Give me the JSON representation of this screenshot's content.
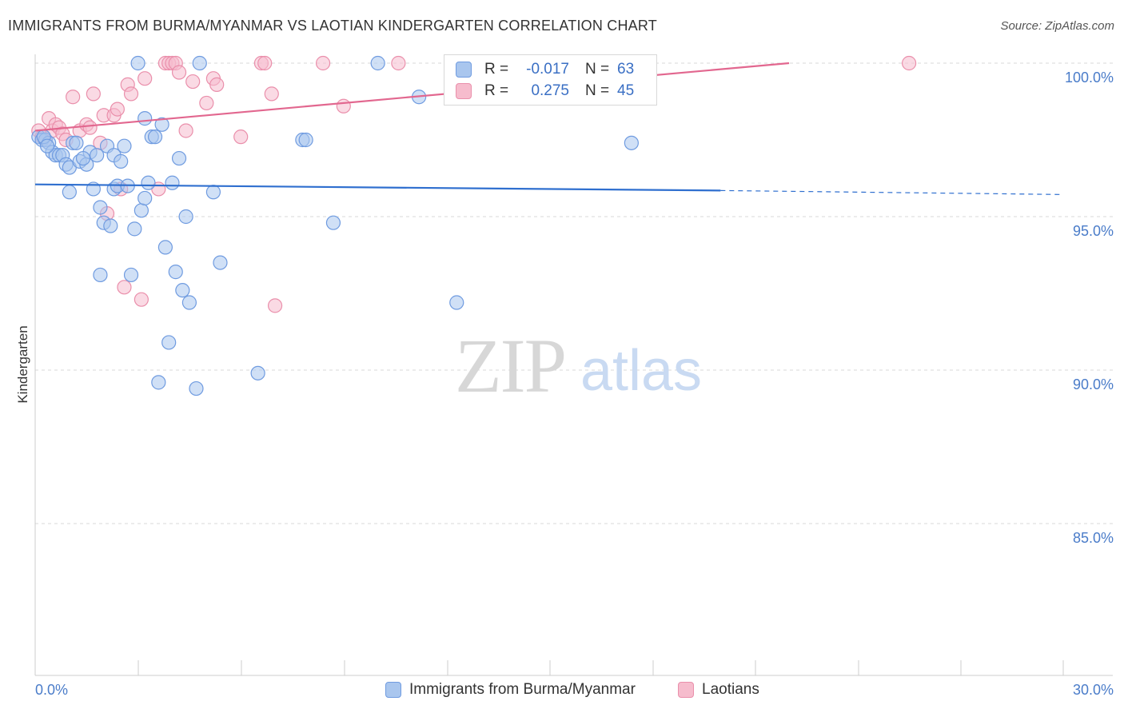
{
  "title": "IMMIGRANTS FROM BURMA/MYANMAR VS LAOTIAN KINDERGARTEN CORRELATION CHART",
  "source": "Source: ZipAtlas.com",
  "watermark": {
    "zip": "ZIP",
    "atlas": "atlas"
  },
  "stats": {
    "r_label": "R =",
    "n_label": "N =",
    "series": [
      {
        "r": "-0.017",
        "n": "63"
      },
      {
        "r": "0.275",
        "n": "45"
      }
    ]
  },
  "colors": {
    "blue_fill": "#a9c6ee",
    "blue_stroke": "#6f9be0",
    "blue_line": "#2f6fcf",
    "pink_fill": "#f6bccd",
    "pink_stroke": "#ea8fab",
    "pink_line": "#e2678f",
    "axis_text": "#4a7cc9",
    "grid": "#d9d9d9"
  },
  "chart_data": {
    "type": "scatter",
    "title": "IMMIGRANTS FROM BURMA/MYANMAR VS LAOTIAN KINDERGARTEN CORRELATION CHART",
    "xlabel": "",
    "ylabel": "Kindergarten",
    "xlim": [
      0,
      30
    ],
    "ylim": [
      80.5,
      100.5
    ],
    "x_tick_labels": [
      "0.0%",
      "30.0%"
    ],
    "y_ticks": [
      100,
      95,
      90,
      85
    ],
    "y_tick_labels": [
      "100.0%",
      "95.0%",
      "90.0%",
      "85.0%"
    ],
    "legend": [
      "Immigrants from Burma/Myanmar",
      "Laotians"
    ],
    "series": [
      {
        "name": "Immigrants from Burma/Myanmar",
        "r": -0.017,
        "n": 63,
        "trend": {
          "x": [
            0,
            20.0
          ],
          "y": [
            96.05,
            95.85
          ],
          "dashed_to": [
            30,
            95.72
          ]
        },
        "points": [
          [
            0.1,
            97.6
          ],
          [
            0.2,
            97.5
          ],
          [
            0.3,
            97.5
          ],
          [
            0.4,
            97.4
          ],
          [
            0.5,
            97.1
          ],
          [
            0.6,
            97.0
          ],
          [
            0.7,
            97.0
          ],
          [
            0.8,
            97.0
          ],
          [
            0.9,
            96.7
          ],
          [
            1.0,
            96.6
          ],
          [
            1.1,
            97.4
          ],
          [
            1.2,
            97.4
          ],
          [
            1.3,
            96.8
          ],
          [
            1.5,
            96.7
          ],
          [
            1.6,
            97.1
          ],
          [
            1.8,
            97.0
          ],
          [
            2.1,
            97.3
          ],
          [
            2.3,
            97.0
          ],
          [
            2.5,
            96.8
          ],
          [
            1.0,
            95.8
          ],
          [
            1.7,
            95.9
          ],
          [
            1.9,
            93.1
          ],
          [
            1.9,
            95.3
          ],
          [
            2.0,
            94.8
          ],
          [
            2.2,
            94.7
          ],
          [
            2.3,
            95.9
          ],
          [
            2.4,
            96.0
          ],
          [
            2.7,
            96.0
          ],
          [
            2.8,
            93.1
          ],
          [
            2.9,
            94.6
          ],
          [
            3.0,
            100.0
          ],
          [
            3.1,
            95.2
          ],
          [
            3.2,
            95.6
          ],
          [
            3.2,
            98.2
          ],
          [
            3.3,
            96.1
          ],
          [
            3.4,
            97.6
          ],
          [
            3.5,
            97.6
          ],
          [
            3.6,
            89.6
          ],
          [
            3.7,
            98.0
          ],
          [
            3.8,
            94.0
          ],
          [
            3.9,
            90.9
          ],
          [
            4.0,
            96.1
          ],
          [
            4.1,
            93.2
          ],
          [
            4.2,
            96.9
          ],
          [
            4.3,
            92.6
          ],
          [
            4.4,
            95.0
          ],
          [
            4.5,
            92.2
          ],
          [
            4.7,
            89.4
          ],
          [
            4.8,
            100.0
          ],
          [
            5.2,
            95.8
          ],
          [
            5.4,
            93.5
          ],
          [
            6.5,
            89.9
          ],
          [
            7.8,
            97.5
          ],
          [
            7.9,
            97.5
          ],
          [
            8.7,
            94.8
          ],
          [
            10.0,
            100.0
          ],
          [
            11.2,
            98.9
          ],
          [
            12.3,
            92.2
          ],
          [
            17.4,
            97.4
          ],
          [
            0.25,
            97.6
          ],
          [
            0.35,
            97.3
          ],
          [
            1.4,
            96.9
          ],
          [
            2.6,
            97.3
          ]
        ]
      },
      {
        "name": "Laotians",
        "r": 0.275,
        "n": 45,
        "trend": {
          "x": [
            0,
            22.0
          ],
          "y": [
            97.8,
            100.0
          ]
        },
        "points": [
          [
            0.1,
            97.8
          ],
          [
            0.2,
            97.6
          ],
          [
            0.3,
            97.5
          ],
          [
            0.4,
            98.2
          ],
          [
            0.5,
            97.8
          ],
          [
            0.6,
            98.0
          ],
          [
            0.7,
            97.9
          ],
          [
            0.8,
            97.7
          ],
          [
            0.9,
            97.5
          ],
          [
            1.1,
            98.9
          ],
          [
            1.3,
            97.8
          ],
          [
            1.5,
            98.0
          ],
          [
            1.6,
            97.9
          ],
          [
            1.7,
            99.0
          ],
          [
            1.9,
            97.4
          ],
          [
            2.0,
            98.3
          ],
          [
            2.1,
            95.1
          ],
          [
            2.3,
            98.3
          ],
          [
            2.4,
            98.5
          ],
          [
            2.5,
            95.9
          ],
          [
            2.6,
            92.7
          ],
          [
            2.7,
            99.3
          ],
          [
            2.8,
            99.0
          ],
          [
            3.1,
            92.3
          ],
          [
            3.2,
            99.5
          ],
          [
            3.6,
            95.9
          ],
          [
            3.8,
            100.0
          ],
          [
            3.9,
            100.0
          ],
          [
            4.0,
            100.0
          ],
          [
            4.1,
            100.0
          ],
          [
            4.2,
            99.7
          ],
          [
            4.4,
            97.8
          ],
          [
            4.6,
            99.4
          ],
          [
            5.0,
            98.7
          ],
          [
            5.2,
            99.5
          ],
          [
            5.3,
            99.3
          ],
          [
            6.0,
            97.6
          ],
          [
            6.6,
            100.0
          ],
          [
            6.7,
            100.0
          ],
          [
            6.9,
            99.0
          ],
          [
            7.0,
            92.1
          ],
          [
            8.4,
            100.0
          ],
          [
            9.0,
            98.6
          ],
          [
            10.6,
            100.0
          ],
          [
            25.5,
            100.0
          ]
        ]
      }
    ]
  },
  "legend_bottom": {
    "items": [
      "Immigrants from Burma/Myanmar",
      "Laotians"
    ]
  }
}
